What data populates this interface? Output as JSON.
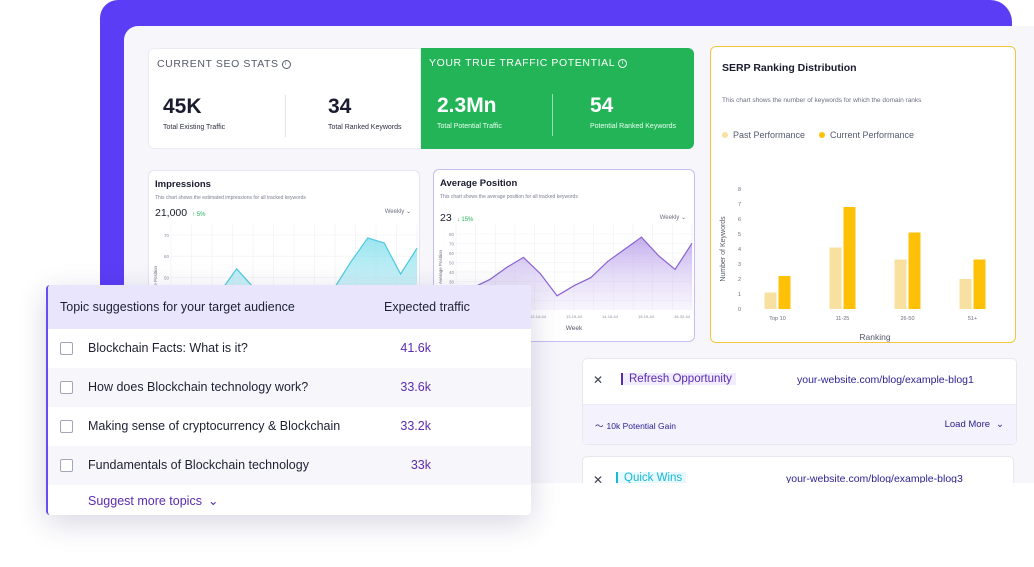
{
  "seo_stats": {
    "title": "CURRENT SEO STATS",
    "existing_traffic_value": "45K",
    "existing_traffic_label": "Total Existing Traffic",
    "ranked_keywords_value": "34",
    "ranked_keywords_label": "Total Ranked Keywords"
  },
  "traffic_potential": {
    "title": "YOUR TRUE TRAFFIC POTENTIAL",
    "potential_traffic_value": "2.3Mn",
    "potential_traffic_label": "Total Potential Traffic",
    "potential_keywords_value": "54",
    "potential_keywords_label": "Potential Ranked Keywords"
  },
  "impressions": {
    "title": "Impressions",
    "subtitle": "This chart shows the estimated impressions for all tracked keywords",
    "value": "21,000",
    "delta": "↑ 5%",
    "period": "Weekly ⌄",
    "y_axis_label": "Average Position",
    "y_ticks": [
      "70",
      "60",
      "50",
      "40",
      "30"
    ],
    "chart_data": {
      "type": "area",
      "values": [
        10,
        14,
        22,
        38,
        56,
        42,
        30,
        20,
        14,
        26,
        42,
        62,
        80,
        76,
        52,
        72
      ],
      "ylim": [
        0,
        90
      ]
    }
  },
  "average_position": {
    "title": "Average Position",
    "subtitle": "This chart shows the average position for all tracked keywords",
    "value": "23",
    "delta": "↓ 15%",
    "period": "Weekly ⌄",
    "y_axis_label": "Average Position",
    "y_ticks": [
      "80",
      "70",
      "60",
      "50",
      "40",
      "30",
      "20",
      "10"
    ],
    "x_axis_label": "Week",
    "x_ticks": [
      "10-25-44",
      "11-12-44",
      "12-14-44",
      "13-15-44",
      "14-16-44",
      "15-19-44",
      "16-32-44"
    ],
    "chart_data": {
      "type": "area",
      "values": [
        20,
        22,
        30,
        42,
        52,
        36,
        14,
        24,
        32,
        48,
        60,
        72,
        54,
        40,
        66
      ],
      "ylim": [
        0,
        85
      ]
    }
  },
  "serp": {
    "title": "SERP Ranking Distribution",
    "subtitle": "This chart shows the number of keywords for which the domain ranks",
    "legend_past": "Past Performance",
    "legend_current": "Current Performance",
    "color_past": "#f8e1a0",
    "color_current": "#ffc107",
    "chart_data": {
      "type": "bar",
      "categories": [
        "Top 10",
        "11-25",
        "26-50",
        "51+"
      ],
      "series": [
        {
          "name": "Past Performance",
          "values": [
            1.1,
            4.1,
            3.3,
            2.0
          ]
        },
        {
          "name": "Current Performance",
          "values": [
            2.2,
            6.8,
            5.1,
            3.3
          ]
        }
      ],
      "ylim": [
        0,
        8
      ],
      "yticks": [
        "0",
        "1",
        "2",
        "3",
        "4",
        "5",
        "6",
        "7",
        "8"
      ],
      "xlabel": "Ranking",
      "ylabel": "Number of Keywords"
    }
  },
  "opportunities": [
    {
      "tag": "Refresh Opportunity",
      "url": "your-website.com/blog/example-blog1",
      "gain": "10k Potential Gain",
      "load_more": "Load More"
    },
    {
      "tag": "Quick Wins",
      "url": "your-website.com/blog/example-blog3"
    }
  ],
  "topics": {
    "header_title": "Topic suggestions for your target audience",
    "header_traffic": "Expected traffic",
    "rows": [
      {
        "label": "Blockchain Facts: What is it?",
        "traffic": "41.6k"
      },
      {
        "label": "How does Blockchain technology work?",
        "traffic": "33.6k"
      },
      {
        "label": "Making sense of cryptocurrency & Blockchain",
        "traffic": "33.2k"
      },
      {
        "label": "Fundamentals of Blockchain technology",
        "traffic": "33k"
      }
    ],
    "suggest_more": "Suggest more topics"
  }
}
